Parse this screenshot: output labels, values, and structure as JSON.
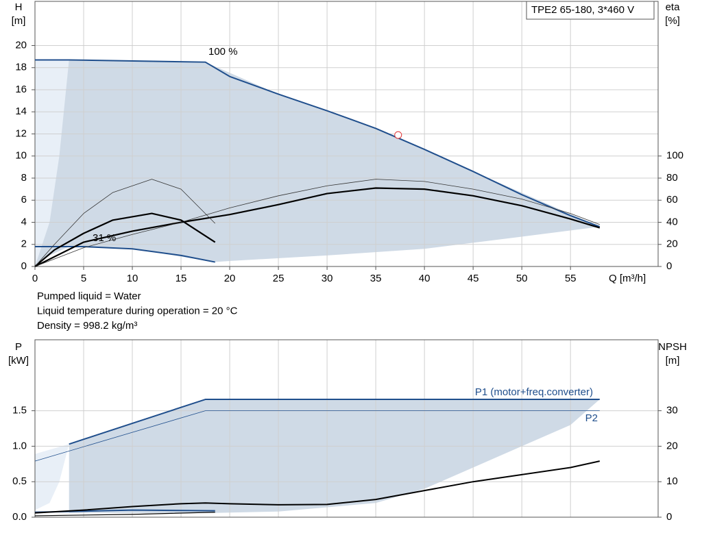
{
  "chart_data": [
    {
      "type": "line",
      "legend_box": "TPE2 65-180, 3*460 V",
      "xlabel": "Q [m³/h]",
      "ylabel": "H",
      "yunit": "[m]",
      "y2label": "eta",
      "y2unit": "[%]",
      "xlim": [
        0,
        64
      ],
      "xticks": [
        0,
        5,
        10,
        15,
        20,
        25,
        30,
        35,
        40,
        45,
        50,
        55
      ],
      "xticklabels_visible": true,
      "ylim": [
        0,
        24
      ],
      "yticks": [
        0,
        2,
        4,
        6,
        8,
        10,
        12,
        14,
        16,
        18,
        20
      ],
      "y2lim": [
        0,
        240
      ],
      "y2ticks": [
        0,
        20,
        40,
        60,
        80,
        100
      ],
      "grid": true,
      "annotations": [
        "100 %",
        "31 %"
      ],
      "notes": [
        "Pumped liquid = Water",
        "Liquid temperature during operation = 20 °C",
        "Density = 998.2 kg/m³"
      ],
      "series": [
        {
          "type": "area",
          "color": "#cfdae6",
          "x": [
            0,
            3.5,
            17.5,
            25,
            35,
            45,
            58,
            50,
            40,
            30,
            20,
            18.5,
            10,
            3.5,
            1.5,
            0
          ],
          "values": [
            18.7,
            18.7,
            18.5,
            15.6,
            12.5,
            8.6,
            3.6,
            2.7,
            1.6,
            1.0,
            0.5,
            0.4,
            1.6,
            1.8,
            1.0,
            0
          ]
        },
        {
          "type": "area",
          "color": "#e8eff7",
          "x": [
            0,
            3.5,
            2.5,
            1.5,
            0
          ],
          "values": [
            18.7,
            18.7,
            10,
            4,
            0
          ]
        },
        {
          "type": "line",
          "color": "#1f4e8c",
          "width": 2,
          "x": [
            0,
            3.5,
            17.5,
            20,
            25,
            30,
            35,
            40,
            45,
            50,
            55,
            58
          ],
          "values": [
            18.7,
            18.7,
            18.5,
            17.2,
            15.6,
            14.1,
            12.5,
            10.6,
            8.6,
            6.5,
            4.6,
            3.6
          ]
        },
        {
          "type": "line",
          "color": "#1f4e8c",
          "width": 2,
          "x": [
            0,
            5,
            10,
            15,
            18.5
          ],
          "values": [
            1.8,
            1.8,
            1.6,
            1.0,
            0.4
          ]
        },
        {
          "type": "line",
          "axis": "y2",
          "color": "#000000",
          "width": 2.2,
          "x": [
            0,
            5,
            10,
            15,
            20,
            25,
            30,
            35,
            40,
            45,
            50,
            55,
            58
          ],
          "values": [
            0,
            22,
            32,
            40,
            47,
            56,
            66,
            71,
            70,
            64,
            55,
            43,
            35
          ]
        },
        {
          "type": "line",
          "axis": "y2",
          "color": "#333333",
          "width": 0.8,
          "x": [
            0,
            5,
            10,
            15,
            20,
            25,
            30,
            35,
            40,
            45,
            50,
            55,
            58
          ],
          "values": [
            0,
            17,
            29,
            40,
            53,
            64,
            73,
            79,
            77,
            70,
            61,
            48,
            38
          ]
        },
        {
          "type": "line",
          "axis": "y2",
          "color": "#000000",
          "width": 2.2,
          "x": [
            0,
            2,
            5,
            8,
            12,
            15,
            18.5
          ],
          "values": [
            0,
            15,
            30,
            42,
            48,
            42,
            22
          ]
        },
        {
          "type": "line",
          "axis": "y2",
          "color": "#333333",
          "width": 0.8,
          "x": [
            0,
            2,
            5,
            8,
            12,
            15,
            18.5
          ],
          "values": [
            0,
            20,
            48,
            67,
            79,
            70,
            39
          ]
        },
        {
          "type": "point",
          "color": "#e03030",
          "x": [
            37.3
          ],
          "values": [
            11.9
          ]
        }
      ]
    },
    {
      "type": "line",
      "ylabel": "P",
      "yunit": "[kW]",
      "y2label": "NPSH",
      "y2unit": "[m]",
      "xlim": [
        0,
        64
      ],
      "xticks": [
        0,
        5,
        10,
        15,
        20,
        25,
        30,
        35,
        40,
        45,
        50,
        55
      ],
      "xticklabels_visible": false,
      "ylim": [
        0,
        2.5
      ],
      "yticks": [
        {
          "value": 0,
          "label": "0.0"
        },
        0.5,
        {
          "value": 1,
          "label": "1.0"
        },
        1.5
      ],
      "y2lim": [
        0,
        50
      ],
      "y2ticks": [
        0,
        10,
        20,
        30
      ],
      "grid": true,
      "series": [
        {
          "type": "area",
          "color": "#cfdae6",
          "x": [
            3.5,
            17.5,
            58,
            55,
            50,
            45,
            40,
            35,
            25,
            18.5,
            3.5
          ],
          "values": [
            1.03,
            1.66,
            1.66,
            1.3,
            1.0,
            0.7,
            0.4,
            0.2,
            0.08,
            0.06,
            0.06
          ]
        },
        {
          "type": "area",
          "color": "#e8eff7",
          "x": [
            0,
            3.5,
            2.5,
            1.5,
            0
          ],
          "values": [
            0.89,
            1.03,
            0.5,
            0.2,
            0.1
          ]
        },
        {
          "type": "line",
          "name": "P1 (motor+freq.converter)",
          "color": "#1f4e8c",
          "width": 2,
          "x": [
            3.5,
            17.5,
            58
          ],
          "values": [
            1.03,
            1.66,
            1.66
          ]
        },
        {
          "type": "line",
          "name": "P2",
          "color": "#1f4e8c",
          "width": 0.8,
          "x": [
            0,
            17.5,
            58
          ],
          "values": [
            0.79,
            1.5,
            1.5
          ]
        },
        {
          "type": "line",
          "color": "#1f4e8c",
          "width": 2,
          "x": [
            0,
            10,
            18.5
          ],
          "values": [
            0.07,
            0.1,
            0.09
          ]
        },
        {
          "type": "line",
          "axis": "y2",
          "color": "#000000",
          "width": 2,
          "x": [
            0,
            5,
            10,
            15,
            17.5,
            20,
            25,
            30,
            35,
            40,
            45,
            50,
            55,
            58
          ],
          "values": [
            1.2,
            2,
            3,
            3.8,
            4,
            3.8,
            3.5,
            3.6,
            5,
            7.5,
            10,
            12,
            14,
            15.8
          ]
        },
        {
          "type": "line",
          "axis": "y2",
          "color": "#000000",
          "width": 1.2,
          "x": [
            0,
            10,
            18.5
          ],
          "values": [
            0.4,
            0.8,
            1.4
          ]
        }
      ]
    }
  ]
}
